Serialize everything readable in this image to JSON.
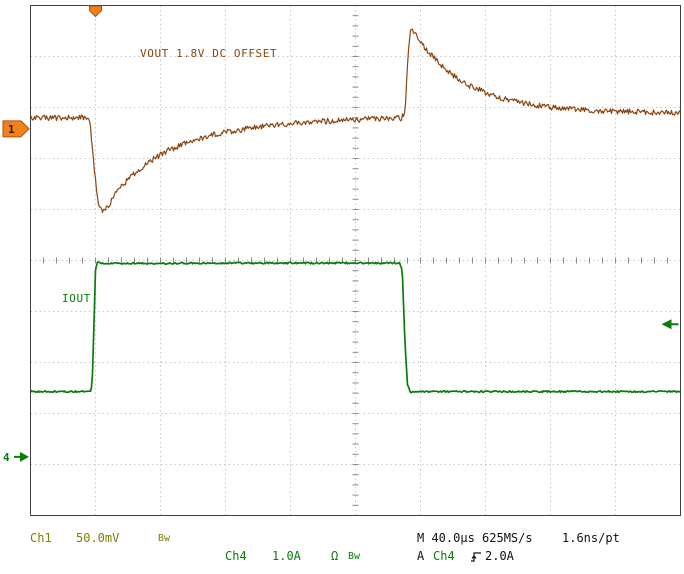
{
  "colors": {
    "ch1_trace": "#8a4510",
    "ch1_status": "#7e7e00",
    "ch4": "#0b7c0b",
    "trigger_marker": "#f0821e",
    "text": "#111111"
  },
  "annotations": {
    "ch1_label": "VOUT 1.8V DC OFFSET",
    "ch4_label": "IOUT"
  },
  "markers": {
    "ch1_ref_label": "1",
    "ch1_pos_div": 2.42,
    "ch4_ref_label": "4",
    "ch4_pos_div": 8.85,
    "trigger_x_div": 1.0,
    "trigger_level_div": 6.25
  },
  "status_bar": {
    "ch1_name": "Ch1",
    "ch1_scale": "50.0mV",
    "ch1_bw": "Bw",
    "ch4_name": "Ch4",
    "ch4_scale": "1.0A",
    "ch4_coupling": "Ω",
    "ch4_bw": "Bw",
    "timebase": "M 40.0µs 625MS/s",
    "resolution": "1.6ns/pt",
    "trigger_prefix": "A",
    "trigger_source": "Ch4",
    "trigger_slope_icon": "rising-edge",
    "trigger_level": "2.0A"
  },
  "chart_data": {
    "type": "line",
    "description": "Oscilloscope capture of a load transient: Ch1 = VOUT (50.0mV/div, 1.8V DC offset) dips on load step-up and overshoots on load step-down; Ch4 = IOUT (1.0A/div) square load-current pulse. Timebase 40.0µs/div, trigger A Ch4 rising edge at 2.0A.",
    "x_axis": {
      "per_division": "40.0µs",
      "divisions": 10,
      "total_span": "400µs"
    },
    "y_axis": {
      "divisions": 10,
      "units": "graticule divisions from top edge"
    },
    "grid": {
      "style": "dotted",
      "x_divisions": 10,
      "y_divisions": 10,
      "center_axis_ticks_per_division": 5
    },
    "events": {
      "load_step_up_div": 1.0,
      "load_step_down_div": 5.78
    },
    "series": [
      {
        "name": "Ch1 VOUT",
        "units_per_division": "50.0mV",
        "dc_offset": "1.8V",
        "color": "#8a4510",
        "noise_div": 0.055,
        "thickness_px": 1.2,
        "points_div": [
          [
            0,
            2.2
          ],
          [
            0.88,
            2.2
          ],
          [
            0.92,
            2.35
          ],
          [
            0.98,
            3.2
          ],
          [
            1.05,
            3.95
          ],
          [
            1.12,
            4.05
          ],
          [
            1.2,
            3.92
          ],
          [
            1.35,
            3.62
          ],
          [
            1.55,
            3.35
          ],
          [
            1.8,
            3.08
          ],
          [
            2.1,
            2.85
          ],
          [
            2.45,
            2.66
          ],
          [
            2.85,
            2.52
          ],
          [
            3.3,
            2.42
          ],
          [
            3.85,
            2.33
          ],
          [
            4.5,
            2.27
          ],
          [
            5.2,
            2.23
          ],
          [
            5.7,
            2.21
          ],
          [
            5.76,
            2.1
          ],
          [
            5.8,
            1.2
          ],
          [
            5.84,
            0.46
          ],
          [
            5.9,
            0.52
          ],
          [
            6.0,
            0.72
          ],
          [
            6.2,
            1.02
          ],
          [
            6.45,
            1.32
          ],
          [
            6.75,
            1.57
          ],
          [
            7.1,
            1.76
          ],
          [
            7.5,
            1.9
          ],
          [
            8.0,
            2.0
          ],
          [
            8.6,
            2.06
          ],
          [
            9.3,
            2.09
          ],
          [
            10,
            2.1
          ]
        ]
      },
      {
        "name": "Ch4 IOUT",
        "units_per_division": "1.0A",
        "color": "#0b7c0b",
        "noise_div": 0.016,
        "thickness_px": 1.7,
        "points_div": [
          [
            0,
            7.57
          ],
          [
            0.92,
            7.57
          ],
          [
            0.95,
            7.4
          ],
          [
            1.0,
            5.2
          ],
          [
            1.03,
            5.02
          ],
          [
            1.08,
            5.06
          ],
          [
            3.0,
            5.05
          ],
          [
            5.68,
            5.05
          ],
          [
            5.72,
            5.2
          ],
          [
            5.76,
            6.6
          ],
          [
            5.8,
            7.45
          ],
          [
            5.85,
            7.59
          ],
          [
            5.95,
            7.57
          ],
          [
            10,
            7.57
          ]
        ]
      }
    ]
  }
}
